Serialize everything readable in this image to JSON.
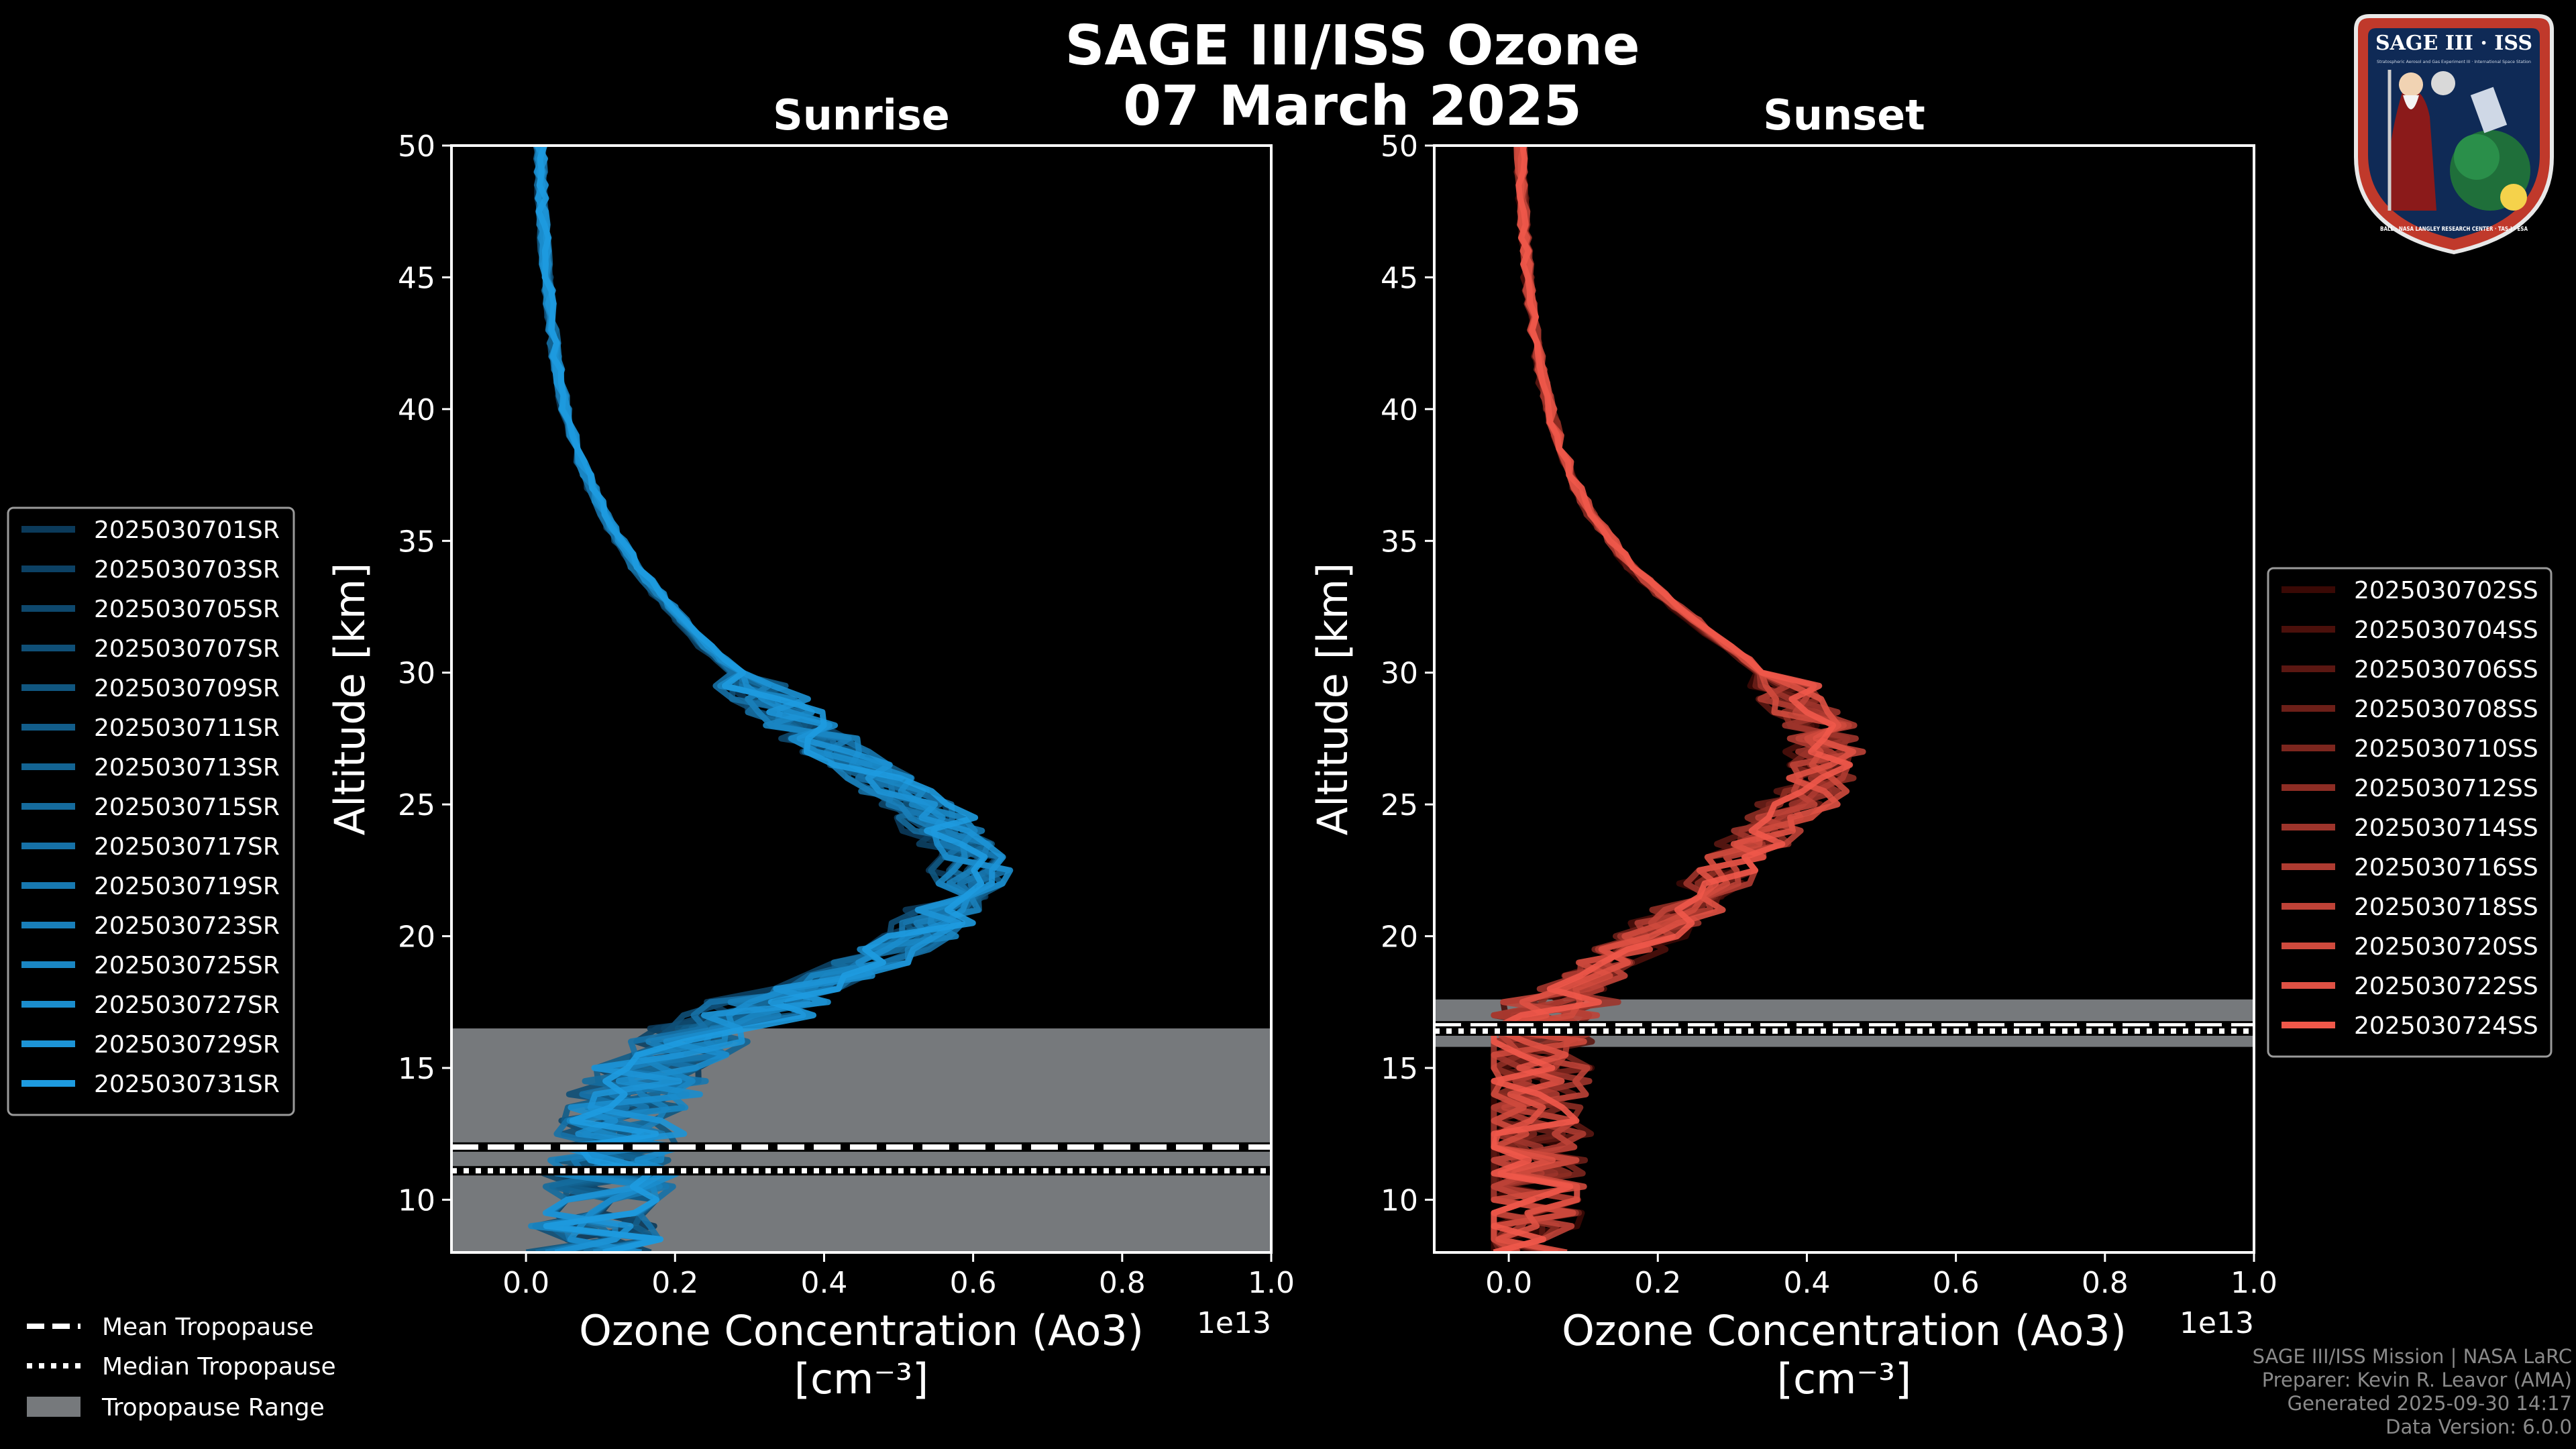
{
  "figure": {
    "title_line1": "SAGE III/ISS Ozone",
    "title_line2": "07 March 2025"
  },
  "logo": {
    "text_main": "SAGE III · ISS",
    "text_sub": "Stratospheric Aerosol and Gas Experiment III · International Space Station",
    "text_ring": "BALL · NASA LANGLEY RESEARCH CENTER · TAS-I · ESA"
  },
  "footer": {
    "line1": "SAGE III/ISS Mission | NASA LaRC",
    "line2": "Preparer: Kevin R. Leavor (AMA)",
    "line3": "Generated 2025-09-30 14:17",
    "line4": "Data Version: 6.0.0"
  },
  "tropopause_legend": {
    "mean": "Mean Tropopause",
    "median": "Median Tropopause",
    "range": "Tropopause Range"
  },
  "colors": {
    "sunrise_dark": "#0b3a5a",
    "sunrise_light": "#1e9be0",
    "sunset_dark": "#3a0905",
    "sunset_light": "#f0584a",
    "tropopause_range": "#76797c"
  },
  "chart_data": [
    {
      "type": "line",
      "title": "Sunrise",
      "xlabel": "Ozone Concentration (Ao3)",
      "xunits": "[cm⁻³]",
      "ylabel": "Altitude [km]",
      "x_offset_label": "1e13",
      "xlim": [
        -0.1,
        1.0
      ],
      "ylim": [
        8,
        50
      ],
      "xticks": [
        0.0,
        0.2,
        0.4,
        0.6,
        0.8,
        1.0
      ],
      "xtick_labels": [
        "0.0",
        "0.2",
        "0.4",
        "0.6",
        "0.8",
        "1.0"
      ],
      "yticks": [
        10,
        15,
        20,
        25,
        30,
        35,
        40,
        45,
        50
      ],
      "tropopause": {
        "mean": 12.0,
        "median": 11.1,
        "range": [
          8.0,
          16.5
        ]
      },
      "base_profile": {
        "altitude": [
          8,
          9,
          10,
          11,
          12,
          13,
          14,
          15,
          16,
          17,
          18,
          19,
          20,
          21,
          22,
          23,
          24,
          25,
          26,
          27,
          28,
          29,
          30,
          31,
          32,
          33,
          34,
          35,
          36,
          37,
          38,
          39,
          40,
          41,
          42,
          43,
          44,
          45,
          46,
          47,
          48,
          49,
          50
        ],
        "ozone": [
          0.08,
          0.09,
          0.1,
          0.11,
          0.12,
          0.13,
          0.14,
          0.16,
          0.2,
          0.28,
          0.36,
          0.44,
          0.5,
          0.54,
          0.57,
          0.57,
          0.54,
          0.5,
          0.45,
          0.4,
          0.35,
          0.31,
          0.27,
          0.23,
          0.2,
          0.17,
          0.14,
          0.12,
          0.1,
          0.085,
          0.07,
          0.06,
          0.05,
          0.044,
          0.038,
          0.034,
          0.03,
          0.027,
          0.024,
          0.022,
          0.02,
          0.019,
          0.018
        ]
      },
      "series": [
        {
          "name": "2025030701SR"
        },
        {
          "name": "2025030703SR"
        },
        {
          "name": "2025030705SR"
        },
        {
          "name": "2025030707SR"
        },
        {
          "name": "2025030709SR"
        },
        {
          "name": "2025030711SR"
        },
        {
          "name": "2025030713SR"
        },
        {
          "name": "2025030715SR"
        },
        {
          "name": "2025030717SR"
        },
        {
          "name": "2025030719SR"
        },
        {
          "name": "2025030723SR"
        },
        {
          "name": "2025030725SR"
        },
        {
          "name": "2025030727SR"
        },
        {
          "name": "2025030729SR"
        },
        {
          "name": "2025030731SR"
        }
      ],
      "legend_position": "left"
    },
    {
      "type": "line",
      "title": "Sunset",
      "xlabel": "Ozone Concentration (Ao3)",
      "xunits": "[cm⁻³]",
      "ylabel": "Altitude [km]",
      "x_offset_label": "1e13",
      "xlim": [
        -0.1,
        1.0
      ],
      "ylim": [
        8,
        50
      ],
      "xticks": [
        0.0,
        0.2,
        0.4,
        0.6,
        0.8,
        1.0
      ],
      "xtick_labels": [
        "0.0",
        "0.2",
        "0.4",
        "0.6",
        "0.8",
        "1.0"
      ],
      "yticks": [
        10,
        15,
        20,
        25,
        30,
        35,
        40,
        45,
        50
      ],
      "tropopause": {
        "mean": 16.6,
        "median": 16.4,
        "range": [
          15.8,
          17.6
        ]
      },
      "base_profile": {
        "altitude": [
          8,
          9,
          10,
          11,
          12,
          13,
          14,
          15,
          16,
          17,
          18,
          19,
          20,
          21,
          22,
          23,
          24,
          25,
          26,
          27,
          28,
          29,
          30,
          31,
          32,
          33,
          34,
          35,
          36,
          37,
          38,
          39,
          40,
          41,
          42,
          43,
          44,
          45,
          46,
          47,
          48,
          49,
          50
        ],
        "ozone": [
          0.01,
          0.01,
          0.015,
          0.02,
          0.02,
          0.025,
          0.03,
          0.03,
          0.035,
          0.05,
          0.09,
          0.15,
          0.21,
          0.26,
          0.3,
          0.34,
          0.38,
          0.42,
          0.45,
          0.46,
          0.45,
          0.42,
          0.37,
          0.32,
          0.27,
          0.22,
          0.18,
          0.15,
          0.12,
          0.1,
          0.085,
          0.07,
          0.06,
          0.05,
          0.043,
          0.037,
          0.032,
          0.028,
          0.025,
          0.022,
          0.02,
          0.018,
          0.017
        ]
      },
      "series": [
        {
          "name": "2025030702SS"
        },
        {
          "name": "2025030704SS"
        },
        {
          "name": "2025030706SS"
        },
        {
          "name": "2025030708SS"
        },
        {
          "name": "2025030710SS"
        },
        {
          "name": "2025030712SS"
        },
        {
          "name": "2025030714SS"
        },
        {
          "name": "2025030716SS"
        },
        {
          "name": "2025030718SS"
        },
        {
          "name": "2025030720SS"
        },
        {
          "name": "2025030722SS"
        },
        {
          "name": "2025030724SS"
        }
      ],
      "legend_position": "right"
    }
  ]
}
